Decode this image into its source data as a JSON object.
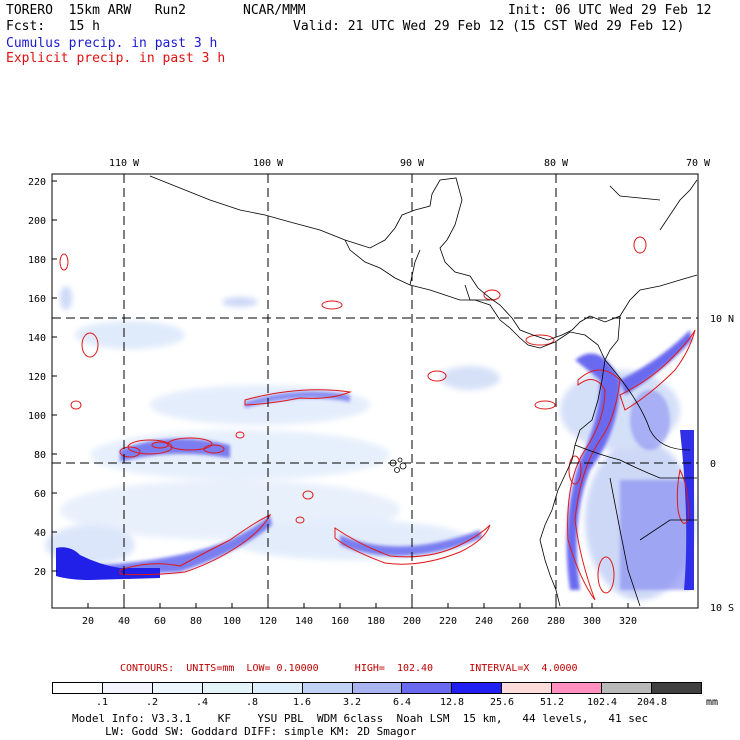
{
  "header": {
    "model": "TORERO  15km ARW   Run2",
    "center": "NCAR/MMM",
    "init": "Init: 06 UTC Wed 29 Feb 12",
    "fcst": "Fcst:   15 h",
    "valid": "Valid: 21 UTC Wed 29 Feb 12 (15 CST Wed 29 Feb 12)",
    "legend_cumulus": "Cumulus precip. in past 3 h",
    "legend_explicit": "Explicit precip. in past 3 h"
  },
  "map": {
    "top_labels": [
      "110 W",
      "100 W",
      "90 W",
      "80 W",
      "70 W"
    ],
    "right_labels": [
      "10 N",
      "0",
      "10 S"
    ],
    "y_ticks": [
      "220",
      "200",
      "180",
      "160",
      "140",
      "120",
      "100",
      "80",
      "60",
      "40",
      "20"
    ],
    "x_ticks": [
      "20",
      "40",
      "60",
      "80",
      "100",
      "120",
      "140",
      "160",
      "180",
      "200",
      "220",
      "240",
      "260",
      "280",
      "300",
      "320"
    ]
  },
  "contours": {
    "label": "CONTOURS:  UNITS=mm  LOW= 0.10000      HIGH=  102.40      INTERVAL=X  4.0000"
  },
  "colorbar": {
    "colors": [
      "#ffffff",
      "#f4f4ff",
      "#ecf6ff",
      "#e4f4f8",
      "#dceefc",
      "#c2d4f6",
      "#a8b4f0",
      "#6a6af0",
      "#2020f0",
      "#ffdcdc",
      "#ff90c0",
      "#b8b8b8",
      "#404040",
      "#d8a8f8"
    ],
    "labels": [
      ".1",
      ".2",
      ".4",
      ".8",
      "1.6",
      "3.2",
      "6.4",
      "12.8",
      "25.6",
      "51.2",
      "102.4",
      "204.8"
    ],
    "unit": "mm"
  },
  "footer": {
    "line1": "Model Info: V3.3.1    KF    YSU PBL  WDM 6class  Noah LSM  15 km,   44 levels,   41 sec",
    "line2": "     LW: Godd SW: Goddard DIFF: simple KM: 2D Smagor"
  }
}
